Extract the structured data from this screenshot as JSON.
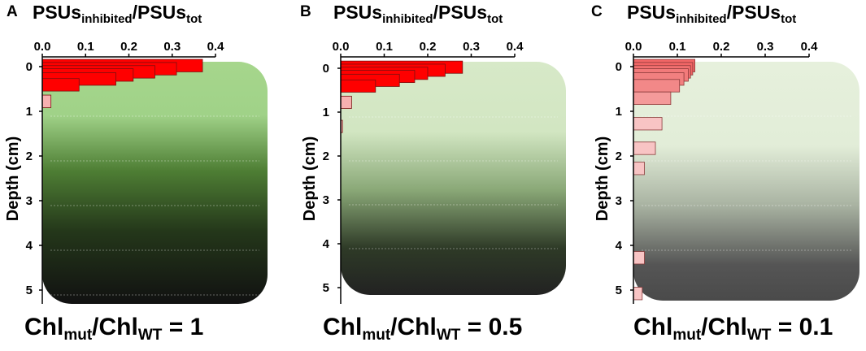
{
  "panels": [
    {
      "letter": "A",
      "title_main": "PSUs",
      "title_sub": "inhibited",
      "title_sep": "/",
      "title_main2": "PSUs",
      "title_sub2": "tot",
      "caption_main": "Chl",
      "caption_sub": "mut",
      "caption_sep": "/Chl",
      "caption_sub2": "WT",
      "caption_value": " = 1",
      "bar_color": "#ff0000",
      "bar_stroke": "#7a1010",
      "gradient": [
        {
          "offset": 0.0,
          "color": "#a6d68c"
        },
        {
          "offset": 0.22,
          "color": "#a0d288"
        },
        {
          "offset": 0.45,
          "color": "#4e7e34"
        },
        {
          "offset": 0.7,
          "color": "#24371a"
        },
        {
          "offset": 1.0,
          "color": "#111111"
        }
      ]
    },
    {
      "letter": "B",
      "title_main": "PSUs",
      "title_sub": "inhibited",
      "title_sep": "/",
      "title_main2": "PSUs",
      "title_sub2": "tot",
      "caption_main": "Chl",
      "caption_sub": "mut",
      "caption_sep": "/Chl",
      "caption_sub2": "WT",
      "caption_value": " = 0.5",
      "bar_color": "#ff0000",
      "bar_stroke": "#7a1010",
      "gradient": [
        {
          "offset": 0.0,
          "color": "#d7e9c8"
        },
        {
          "offset": 0.3,
          "color": "#d2e6c2"
        },
        {
          "offset": 0.55,
          "color": "#8aa877"
        },
        {
          "offset": 0.8,
          "color": "#2e3a27"
        },
        {
          "offset": 1.0,
          "color": "#222222"
        }
      ]
    },
    {
      "letter": "C",
      "title_main": "PSUs",
      "title_sub": "inhibited",
      "title_sep": "/",
      "title_main2": "PSUs",
      "title_sub2": "tot",
      "caption_main": "Chl",
      "caption_sub": "mut",
      "caption_sep": "/Chl",
      "caption_sub2": "WT",
      "caption_value": " = 0.1",
      "bar_color": "#f28a8a",
      "bar_stroke": "#8a3a3a",
      "gradient": [
        {
          "offset": 0.0,
          "color": "#e6f0dc"
        },
        {
          "offset": 0.35,
          "color": "#e2edd8"
        },
        {
          "offset": 0.6,
          "color": "#a9b3a2"
        },
        {
          "offset": 0.85,
          "color": "#555555"
        },
        {
          "offset": 1.0,
          "color": "#4a4a4a"
        }
      ]
    }
  ],
  "chart_data": [
    {
      "type": "bar",
      "orientation": "horizontal",
      "xlabel": "PSUsinhibited/PSUstot",
      "ylabel": "Depth (cm)",
      "xlim": [
        0,
        0.4
      ],
      "ylim": [
        0,
        5.2
      ],
      "x_ticks": [
        "0.0",
        "0.1",
        "0.2",
        "0.3",
        "0.4"
      ],
      "y_ticks": [
        "0",
        "1",
        "2",
        "3",
        "4",
        "5"
      ],
      "bars": [
        {
          "depth": 0.05,
          "value": 0.37,
          "color": "#ff0000"
        },
        {
          "depth": 0.12,
          "value": 0.31,
          "color": "#ff0000"
        },
        {
          "depth": 0.19,
          "value": 0.26,
          "color": "#ff0000"
        },
        {
          "depth": 0.26,
          "value": 0.21,
          "color": "#ff0000"
        },
        {
          "depth": 0.35,
          "value": 0.17,
          "color": "#ff0000"
        },
        {
          "depth": 0.48,
          "value": 0.085,
          "color": "#ff0000"
        },
        {
          "depth": 0.85,
          "value": 0.02,
          "color": "#f7b0b0"
        }
      ]
    },
    {
      "type": "bar",
      "orientation": "horizontal",
      "xlabel": "PSUsinhibited/PSUstot",
      "ylabel": "Depth (cm)",
      "xlim": [
        0,
        0.4
      ],
      "ylim": [
        0,
        5.2
      ],
      "x_ticks": [
        "0.0",
        "0.1",
        "0.2",
        "0.3",
        "0.4"
      ],
      "y_ticks": [
        "0",
        "1",
        "2",
        "3",
        "4",
        "5"
      ],
      "bars": [
        {
          "depth": 0.05,
          "value": 0.28,
          "color": "#ff0000"
        },
        {
          "depth": 0.12,
          "value": 0.24,
          "color": "#ff0000"
        },
        {
          "depth": 0.19,
          "value": 0.2,
          "color": "#ff0000"
        },
        {
          "depth": 0.26,
          "value": 0.17,
          "color": "#ff0000"
        },
        {
          "depth": 0.35,
          "value": 0.135,
          "color": "#ff0000"
        },
        {
          "depth": 0.48,
          "value": 0.08,
          "color": "#ff0000"
        },
        {
          "depth": 0.85,
          "value": 0.025,
          "color": "#f7b0b0"
        },
        {
          "depth": 1.4,
          "value": 0.004,
          "color": "#f7b0b0"
        }
      ]
    },
    {
      "type": "bar",
      "orientation": "horizontal",
      "xlabel": "PSUsinhibited/PSUstot",
      "ylabel": "Depth (cm)",
      "xlim": [
        0,
        0.4
      ],
      "ylim": [
        0,
        5.2
      ],
      "x_ticks": [
        "0.0",
        "0.1",
        "0.2",
        "0.3",
        "0.4"
      ],
      "y_ticks": [
        "0",
        "1",
        "2",
        "3",
        "4",
        "5"
      ],
      "bars": [
        {
          "depth": 0.05,
          "value": 0.14,
          "color": "#f26666"
        },
        {
          "depth": 0.12,
          "value": 0.135,
          "color": "#f26666"
        },
        {
          "depth": 0.19,
          "value": 0.13,
          "color": "#f27070"
        },
        {
          "depth": 0.26,
          "value": 0.125,
          "color": "#f27a7a"
        },
        {
          "depth": 0.35,
          "value": 0.115,
          "color": "#f28080"
        },
        {
          "depth": 0.5,
          "value": 0.105,
          "color": "#f28888"
        },
        {
          "depth": 0.78,
          "value": 0.085,
          "color": "#f49a9a"
        },
        {
          "depth": 1.35,
          "value": 0.065,
          "color": "#f8c4c4"
        },
        {
          "depth": 1.9,
          "value": 0.05,
          "color": "#f8c4c4"
        },
        {
          "depth": 2.35,
          "value": 0.025,
          "color": "#f8c4c4"
        },
        {
          "depth": 4.35,
          "value": 0.025,
          "color": "#f8c4c4"
        },
        {
          "depth": 5.15,
          "value": 0.02,
          "color": "#f8c4c4"
        }
      ]
    }
  ]
}
